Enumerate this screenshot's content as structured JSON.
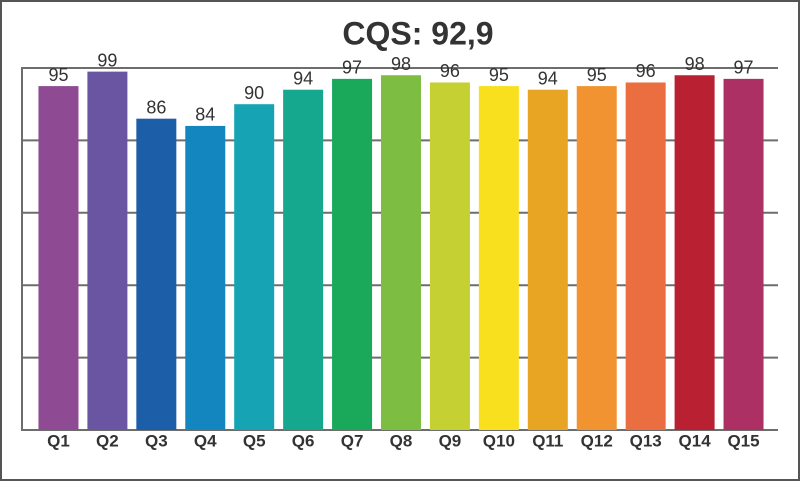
{
  "chart_data": {
    "type": "bar",
    "title": "CQS: 92,9",
    "categories": [
      "Q1",
      "Q2",
      "Q3",
      "Q4",
      "Q5",
      "Q6",
      "Q7",
      "Q8",
      "Q9",
      "Q10",
      "Q11",
      "Q12",
      "Q13",
      "Q14",
      "Q15"
    ],
    "values": [
      95,
      99,
      86,
      84,
      90,
      94,
      97,
      98,
      96,
      95,
      94,
      95,
      96,
      98,
      97
    ],
    "colors": [
      "#8e4a92",
      "#6a55a3",
      "#1d5ea8",
      "#1385bf",
      "#16a4b4",
      "#16a88f",
      "#1aa95a",
      "#7cbd42",
      "#c5d132",
      "#f8e01f",
      "#e8a423",
      "#f29331",
      "#ea6e40",
      "#b92032",
      "#ad3064"
    ],
    "ylim": [
      0,
      100
    ],
    "yticks": [
      0,
      20,
      40,
      60,
      80,
      100
    ],
    "grid": true
  }
}
